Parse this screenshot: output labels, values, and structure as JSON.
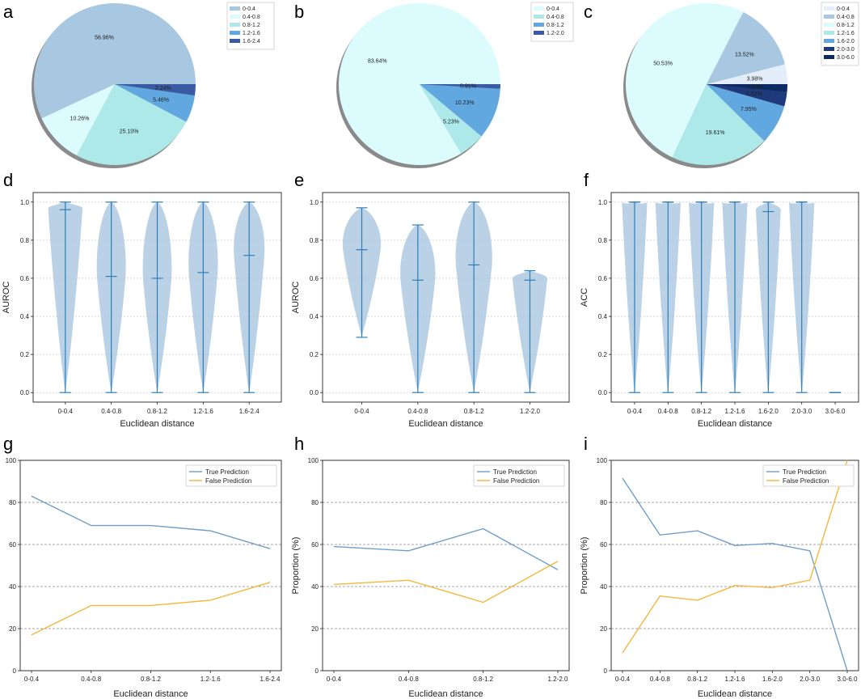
{
  "figure": {
    "description_free": true
  },
  "colors": {
    "blue_line": "#6f9ec8",
    "orange_line": "#f5b73b",
    "violin_fill": "#a9c6e0",
    "violin_line": "#2e7fb8",
    "pie": [
      "#e3eefa",
      "#a8c7e1",
      "#dcfbfd",
      "#aee9ea",
      "#62a8e0",
      "#3a5ba3",
      "#1f3a7a",
      "#0d2a64"
    ]
  },
  "chart_data": [
    {
      "panel": "a",
      "type": "pie",
      "categories": [
        "0-0.4",
        "0.4-0.8",
        "0.8-1.2",
        "1.2-1.6",
        "1.6-2.4"
      ],
      "values": [
        56.96,
        10.26,
        25.1,
        5.46,
        2.24
      ],
      "labels": [
        "56.96%",
        "10.26%",
        "25.10%",
        "5.46%",
        "2.24%"
      ],
      "color_index": [
        1,
        2,
        3,
        4,
        5
      ],
      "legend": "top-right"
    },
    {
      "panel": "b",
      "type": "pie",
      "categories": [
        "0-0.4",
        "0.4-0.8",
        "0.8-1.2",
        "1.2-2.0"
      ],
      "values": [
        83.64,
        5.23,
        10.23,
        0.91
      ],
      "labels": [
        "83.64%",
        "5.23%",
        "10.23%",
        "0.91%"
      ],
      "color_index": [
        2,
        3,
        4,
        5
      ],
      "legend": "top-right"
    },
    {
      "panel": "c",
      "type": "pie",
      "categories": [
        "0-0.4",
        "0.4-0.8",
        "0.8-1.2",
        "1.2-1.6",
        "1.6-2.0",
        "2.0-3.0",
        "3.0-6.0"
      ],
      "values": [
        3.98,
        13.52,
        50.53,
        19.61,
        7.95,
        2.83,
        1.58
      ],
      "labels": [
        "3.98%",
        "13.52%",
        "50.53%",
        "19.61%",
        "7.95%",
        "2.83%",
        "1.58%"
      ],
      "color_index": [
        0,
        1,
        2,
        3,
        4,
        6,
        7
      ],
      "legend": "top-right"
    },
    {
      "panel": "d",
      "type": "violin",
      "categories": [
        "0-0.4",
        "0.4-0.8",
        "0.8-1.2",
        "1.2-1.6",
        "1.6-2.4"
      ],
      "min": [
        0.0,
        0.0,
        0.0,
        0.0,
        0.0
      ],
      "max": [
        1.0,
        1.0,
        1.0,
        1.0,
        1.0
      ],
      "median": [
        0.96,
        0.61,
        0.6,
        0.63,
        0.72
      ],
      "ylabel": "AUROC",
      "xlabel": "Euclidean distance",
      "ylim": [
        -0.05,
        1.05
      ],
      "yticks": [
        "0.0",
        "0.2",
        "0.4",
        "0.6",
        "0.8",
        "1.0"
      ]
    },
    {
      "panel": "e",
      "type": "violin",
      "categories": [
        "0-0.4",
        "0.4-0.8",
        "0.8-1.2",
        "1.2-2.0"
      ],
      "min": [
        0.29,
        0.0,
        0.0,
        0.0
      ],
      "max": [
        0.97,
        0.88,
        1.0,
        0.64
      ],
      "median": [
        0.75,
        0.59,
        0.67,
        0.59
      ],
      "ylabel": "AUROC",
      "xlabel": "Euclidean distance",
      "ylim": [
        -0.05,
        1.05
      ],
      "yticks": [
        "0.0",
        "0.2",
        "0.4",
        "0.6",
        "0.8",
        "1.0"
      ]
    },
    {
      "panel": "f",
      "type": "violin",
      "categories": [
        "0-0.4",
        "0.4-0.8",
        "0.8-1.2",
        "1.2-1.6",
        "1.6-2.0",
        "2.0-3.0",
        "3.0-6.0"
      ],
      "min": [
        0.0,
        0.0,
        0.0,
        0.0,
        0.0,
        0.0,
        0.0
      ],
      "max": [
        1.0,
        1.0,
        1.0,
        1.0,
        1.0,
        1.0,
        0.0
      ],
      "median": [
        1.0,
        1.0,
        1.0,
        1.0,
        0.95,
        1.0,
        0.0
      ],
      "ylabel": "ACC",
      "xlabel": "Euclidean distance",
      "ylim": [
        -0.05,
        1.05
      ],
      "yticks": [
        "0.0",
        "0.2",
        "0.4",
        "0.6",
        "0.8",
        "1.0"
      ]
    },
    {
      "panel": "g",
      "type": "line",
      "categories": [
        "0-0.4",
        "0.4-0.8",
        "0.8-1.2",
        "1.2-1.6",
        "1.6-2.4"
      ],
      "series": [
        {
          "name": "True Prediction",
          "values": [
            83,
            69,
            69,
            66.5,
            58
          ]
        },
        {
          "name": "False Prediction",
          "values": [
            17,
            31,
            31,
            33.5,
            42
          ]
        }
      ],
      "ylabel": "",
      "xlabel": "Euclidean distance",
      "ylim": [
        0,
        100
      ],
      "yticks": [
        "0",
        "20",
        "40",
        "60",
        "80",
        "100"
      ]
    },
    {
      "panel": "h",
      "type": "line",
      "categories": [
        "0-0.4",
        "0.4-0.8",
        "0.8-1.2",
        "1.2-2.0"
      ],
      "series": [
        {
          "name": "True Prediction",
          "values": [
            59,
            57,
            67.5,
            48
          ]
        },
        {
          "name": "False Prediction",
          "values": [
            41,
            43,
            32.5,
            52
          ]
        }
      ],
      "ylabel": "Proportion (%)",
      "xlabel": "Euclidean distance",
      "ylim": [
        0,
        100
      ],
      "yticks": [
        "0",
        "20",
        "40",
        "60",
        "80",
        "100"
      ]
    },
    {
      "panel": "i",
      "type": "line",
      "categories": [
        "0-0.4",
        "0.4-0.8",
        "0.8-1.2",
        "1.2-1.6",
        "1.6-2.0",
        "2.0-3.0",
        "3.0-6.0"
      ],
      "series": [
        {
          "name": "True Prediction",
          "values": [
            91.5,
            64.5,
            66.5,
            59.5,
            60.5,
            57,
            0
          ]
        },
        {
          "name": "False Prediction",
          "values": [
            8.5,
            35.5,
            33.5,
            40.5,
            39.5,
            43,
            100
          ]
        }
      ],
      "ylabel": "Proportion (%)",
      "xlabel": "Euclidean distance",
      "ylim": [
        0,
        100
      ],
      "yticks": [
        "0",
        "20",
        "40",
        "60",
        "80",
        "100"
      ]
    }
  ]
}
